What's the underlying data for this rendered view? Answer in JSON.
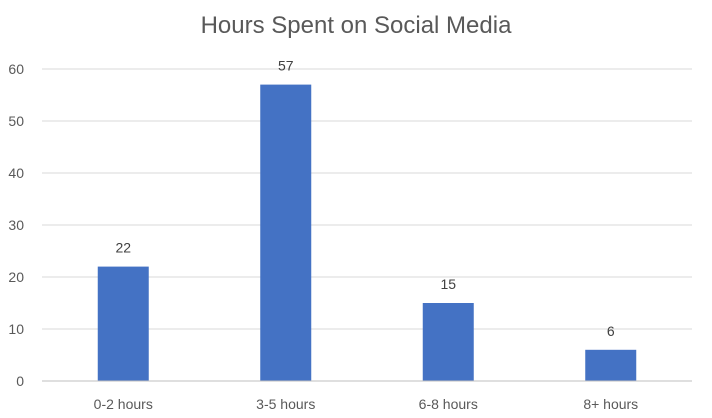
{
  "chart_data": {
    "type": "bar",
    "title": "Hours Spent on Social Media",
    "categories": [
      "0-2 hours",
      "3-5 hours",
      "6-8 hours",
      "8+ hours"
    ],
    "values": [
      22,
      57,
      15,
      6
    ],
    "ylim": [
      0,
      60
    ],
    "yticks": [
      0,
      10,
      20,
      30,
      40,
      50,
      60
    ],
    "grid": true,
    "legend": "none",
    "data_labels": true,
    "bar_color": "#4472C4",
    "grid_color": "#D9D9D9",
    "axis_color": "#BFBFBF"
  }
}
